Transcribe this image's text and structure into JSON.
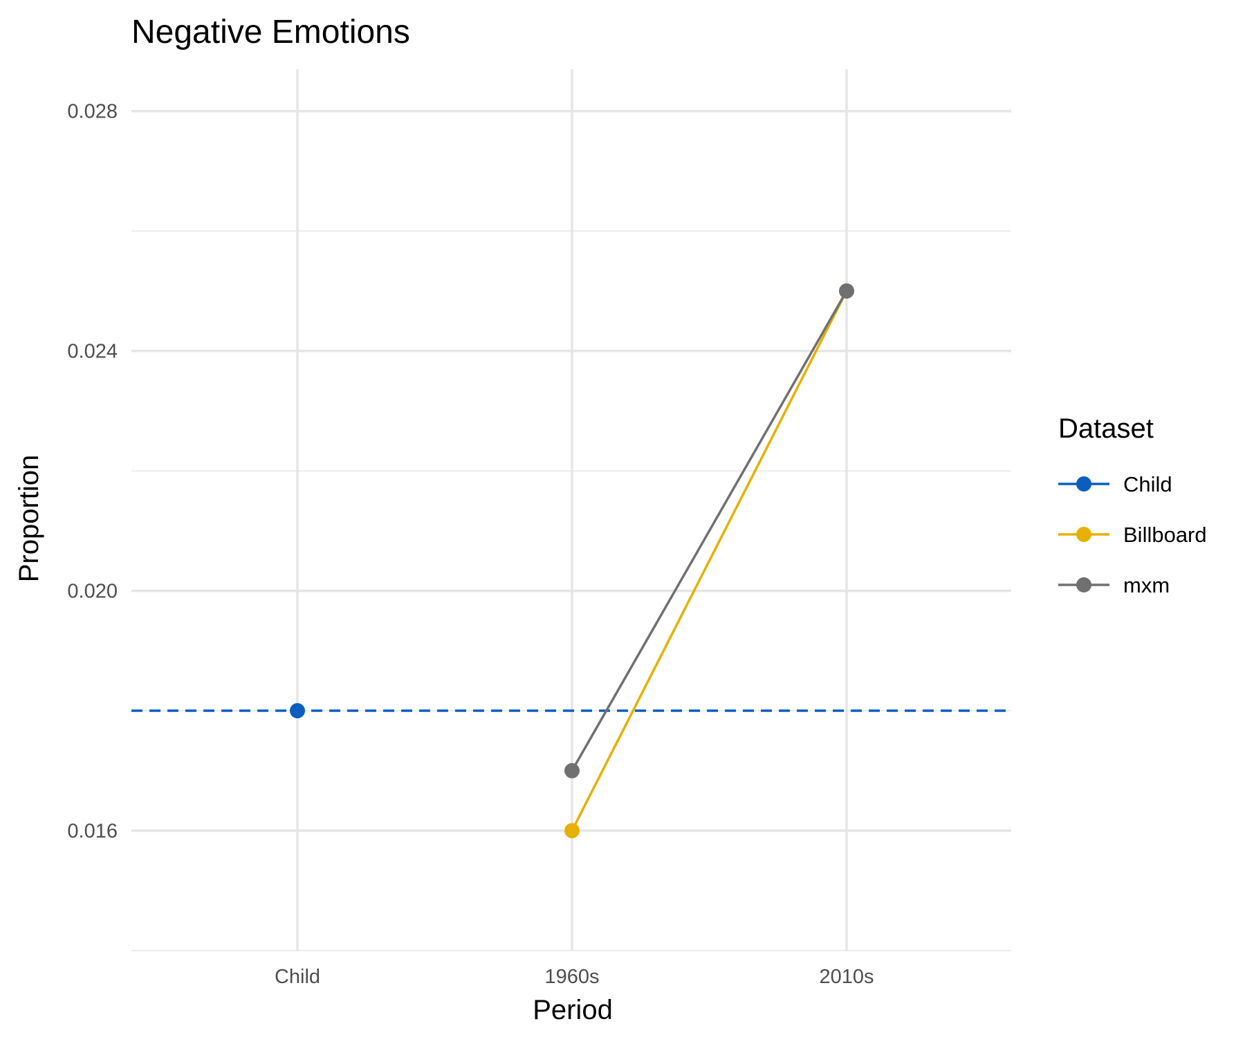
{
  "chart_data": {
    "type": "line",
    "title": "Negative Emotions",
    "xlabel": "Period",
    "ylabel": "Proportion",
    "categories": [
      "Child",
      "1960s",
      "2010s"
    ],
    "ylim": [
      0.014,
      0.0287
    ],
    "yticks": [
      0.016,
      0.02,
      0.024,
      0.028
    ],
    "ytick_labels": [
      "0.016",
      "0.020",
      "0.024",
      "0.028"
    ],
    "grid": true,
    "legend": {
      "title": "Dataset",
      "position": "right",
      "entries": [
        "Child",
        "Billboard",
        "mxm"
      ]
    },
    "series": [
      {
        "name": "Child",
        "color": "#0B5EBF",
        "values": [
          0.018,
          null,
          null
        ],
        "reference_line": 0.018,
        "reference_style": "dashed"
      },
      {
        "name": "Billboard",
        "color": "#E6B000",
        "values": [
          null,
          0.016,
          0.025
        ]
      },
      {
        "name": "mxm",
        "color": "#707070",
        "values": [
          null,
          0.017,
          0.025
        ]
      }
    ]
  }
}
